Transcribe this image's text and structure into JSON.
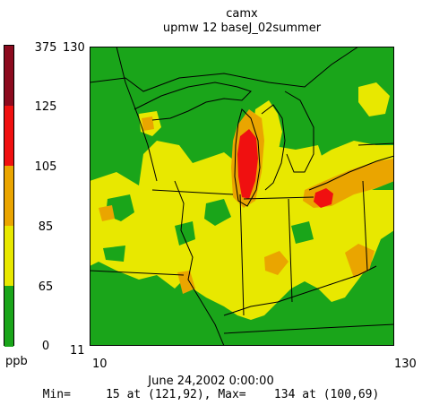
{
  "title": "camx",
  "subtitle": "upmw 12 baseJ_02summer",
  "legend": {
    "unit": "ppb",
    "levels": [
      "375",
      "125",
      "105",
      "85",
      "65",
      "0"
    ],
    "bands": [
      {
        "from": 0,
        "to": 65,
        "color": "#1aa51a"
      },
      {
        "from": 65,
        "to": 85,
        "color": "#e8e800"
      },
      {
        "from": 85,
        "to": 105,
        "color": "#eaa500"
      },
      {
        "from": 105,
        "to": 125,
        "color": "#f01010"
      },
      {
        "from": 125,
        "to": 375,
        "color": "#8c0a1e"
      }
    ]
  },
  "axes": {
    "y_top": "130",
    "y_bottom": "11",
    "x_left": "10",
    "x_right": "130"
  },
  "footer": {
    "date": "June 24,2002 0:00:00",
    "minmax": "Min=     15 at (121,92), Max=    134 at (100,69)"
  }
}
